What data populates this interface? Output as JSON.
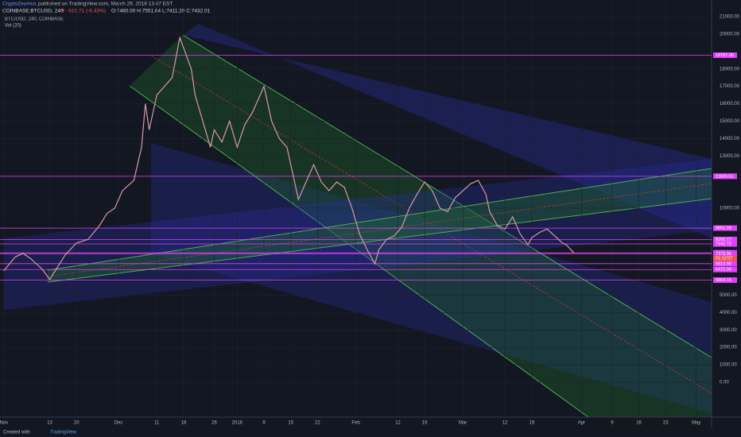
{
  "chart_data": {
    "type": "line",
    "author": "CryptoZeumus",
    "published": "published on TradingView.com, March 29, 2018 13:47 EST",
    "symbol": "COINBASE:BTCUSD, 240",
    "change": "▼ -510.71 (-6.43%)",
    "ohlc": "O:7460.00 H:7551.64 L:7411.20 C:7432.01",
    "title": "BTC/USD, 240, COINBASE",
    "indicator": "Vol (20)",
    "footer": "Created with",
    "brand": "TradingView",
    "countdown": "01:12:07",
    "x": [
      0,
      3,
      5,
      7,
      10,
      12,
      14,
      16,
      19,
      22,
      25,
      27,
      29,
      31,
      34,
      36,
      37,
      38,
      40,
      42,
      44,
      46,
      47,
      49,
      50,
      52,
      54,
      55,
      57,
      59,
      61,
      63,
      65,
      67,
      68,
      70,
      72,
      74,
      76,
      77,
      79,
      81,
      83,
      85,
      87,
      89,
      91,
      93,
      95,
      97,
      98,
      100,
      102,
      104,
      106,
      108,
      110,
      112,
      114,
      116,
      118,
      120,
      122,
      124,
      126,
      127,
      129,
      131,
      133,
      135,
      137,
      138,
      140,
      142,
      144,
      146,
      147,
      149
    ],
    "series": [
      {
        "name": "BTC/USD",
        "color": "#d69aa4",
        "values": [
          6400,
          7200,
          7400,
          7100,
          6500,
          5900,
          6600,
          7300,
          8000,
          8200,
          9000,
          9700,
          10000,
          11000,
          11600,
          13500,
          16000,
          14500,
          16500,
          17000,
          17500,
          19800,
          19200,
          18000,
          16500,
          15000,
          13500,
          14500,
          13800,
          15000,
          13500,
          14800,
          15500,
          16500,
          17000,
          15000,
          14000,
          13500,
          11500,
          10500,
          11500,
          12500,
          11500,
          11000,
          11500,
          11200,
          10000,
          8500,
          7600,
          6800,
          7600,
          8200,
          8400,
          8900,
          10000,
          10800,
          11500,
          11000,
          10000,
          9800,
          10600,
          11000,
          11400,
          11600,
          10800,
          9800,
          9000,
          8800,
          9500,
          8500,
          7900,
          8300,
          8600,
          8800,
          8400,
          8000,
          7900,
          7432
        ]
      }
    ],
    "xlim": [
      -1,
      185
    ],
    "xticks": [
      {
        "value": 0,
        "label": "Nov"
      },
      {
        "value": 12,
        "label": "13"
      },
      {
        "value": 19,
        "label": "20"
      },
      {
        "value": 30,
        "label": "Dec"
      },
      {
        "value": 40,
        "label": "11"
      },
      {
        "value": 47,
        "label": "18"
      },
      {
        "value": 55,
        "label": "26"
      },
      {
        "value": 61,
        "label": "2018"
      },
      {
        "value": 68,
        "label": "8"
      },
      {
        "value": 75,
        "label": "15"
      },
      {
        "value": 82,
        "label": "22"
      },
      {
        "value": 92,
        "label": "Feb"
      },
      {
        "value": 103,
        "label": "12"
      },
      {
        "value": 110,
        "label": "19"
      },
      {
        "value": 120,
        "label": "Mar"
      },
      {
        "value": 131,
        "label": "12"
      },
      {
        "value": 138,
        "label": "19"
      },
      {
        "value": 151,
        "label": "Apr"
      },
      {
        "value": 159,
        "label": "9"
      },
      {
        "value": 166,
        "label": "16"
      },
      {
        "value": 173,
        "label": "23"
      },
      {
        "value": 181,
        "label": "May"
      }
    ],
    "ylim": [
      -2010,
      21960
    ],
    "yticks": [
      {
        "value": 0,
        "label": "0.00"
      },
      {
        "value": 1000,
        "label": "1000.00"
      },
      {
        "value": 2000,
        "label": "2000.00"
      },
      {
        "value": 3000,
        "label": "3000.00"
      },
      {
        "value": 4000,
        "label": "4000.00"
      },
      {
        "value": 5000,
        "label": "5000.00"
      },
      {
        "value": 10000,
        "label": "10000.00"
      },
      {
        "value": 13000,
        "label": "13000.00"
      },
      {
        "value": 14000,
        "label": "14000.00"
      },
      {
        "value": 15000,
        "label": "15000.00"
      },
      {
        "value": 16000,
        "label": "16000.00"
      },
      {
        "value": 17000,
        "label": "17000.00"
      },
      {
        "value": 18000,
        "label": "18000.00"
      },
      {
        "value": 20000,
        "label": "20000.00"
      },
      {
        "value": 21000,
        "label": "21000.00"
      }
    ],
    "levels": [
      {
        "value": 18787.06,
        "label": "18787.06"
      },
      {
        "value": 11830.51,
        "label": "11830.51"
      },
      {
        "value": 8852.08,
        "label": "8852.08"
      },
      {
        "value": 8200.77,
        "label": "8200.77"
      },
      {
        "value": 7942.72,
        "label": "7942.72"
      },
      {
        "value": 7432.01,
        "label": "7432.01"
      },
      {
        "value": 7373.36,
        "label": "7373.36"
      },
      {
        "value": 6810.98,
        "label": "6810.98"
      },
      {
        "value": 6472.0,
        "label": "6472.00"
      },
      {
        "value": 5864.15,
        "label": "5864.15"
      }
    ],
    "level_color": "#e040fb",
    "grid": true
  }
}
